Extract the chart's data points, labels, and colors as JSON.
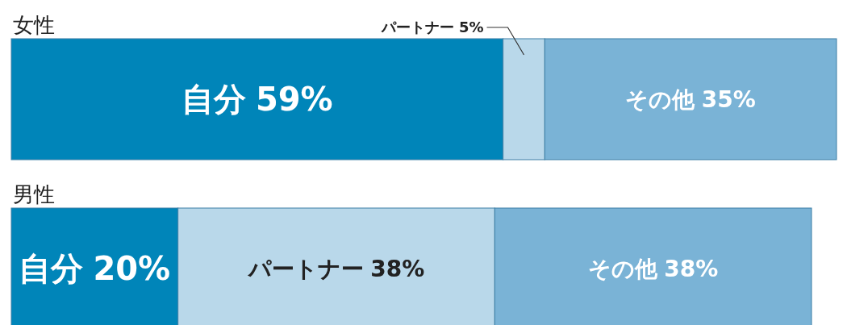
{
  "chart_data": {
    "type": "bar",
    "orientation": "horizontal",
    "stacked": true,
    "categories": [
      "女性",
      "男性"
    ],
    "series": [
      {
        "name": "自分",
        "color": "#0085b9",
        "values": [
          59,
          20
        ],
        "value_labels": [
          "59%",
          "20%"
        ]
      },
      {
        "name": "パートナー",
        "color": "#b9d8ea",
        "values": [
          5,
          38
        ],
        "value_labels": [
          "5%",
          "38%"
        ]
      },
      {
        "name": "その他",
        "color": "#7ab3d6",
        "values": [
          35,
          38
        ],
        "value_labels": [
          "35%",
          "38%"
        ]
      }
    ]
  }
}
